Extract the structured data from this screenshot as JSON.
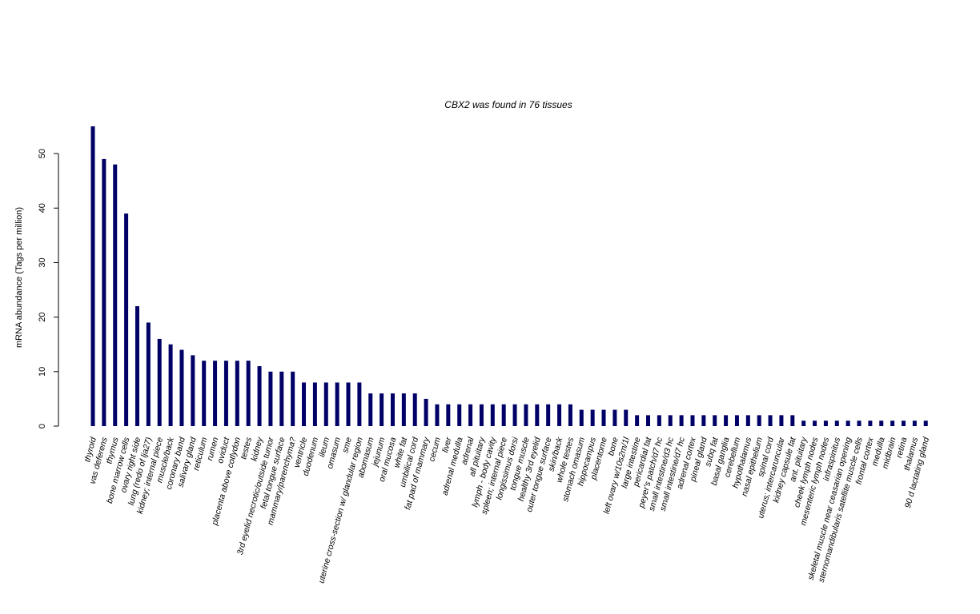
{
  "chart_data": {
    "type": "bar",
    "title": "CBX2  was found in  76  tissues",
    "xlabel": "",
    "ylabel": "mRNA abundance (Tags per million)",
    "ylim": [
      0,
      55
    ],
    "yticks": [
      0,
      10,
      20,
      30,
      40,
      50
    ],
    "bar_color": "#000066",
    "grid": false,
    "categories": [
      "thyroid",
      "vas deferens",
      "thymus",
      "bone marrow cells",
      "ovary right side",
      "lung (redo of lja27)",
      "kidney; internal piece",
      "muscle/back",
      "coronary band",
      "salivary gland",
      "reticulum",
      "rumen",
      "oviduct",
      "placenta above cotlydon",
      "testes",
      "kidney",
      "3rd eyelid necrotic/outside tumor",
      "fetal tongue surface",
      "mammary/parenchyma?",
      "ventricle",
      "duodenum",
      "ileum",
      "omasum",
      "sme",
      "uterine cross-section w/ glandular region",
      "abomasum",
      "jejunum",
      "oral mucosa",
      "white fat",
      "umbilical cord",
      "fat pad of mammary",
      "cecum",
      "liver",
      "adrenal medulla",
      "adrenal",
      "all pituitary",
      "lymph - body cavity",
      "spleen; internal piece",
      "longissimus dorsi",
      "tongue muscle",
      "healthy 3rd eyelid",
      "outer tongue surface",
      "skin/back",
      "whole testes",
      "stomach omasum",
      "hippocampus",
      "placentome",
      "bone",
      "left ovary w/10s2m/1l",
      "large intestine",
      "pericardial fat",
      "peyer's patch/d7 hc",
      "small intestine/d3 hc",
      "small intestine/d7 hc",
      "adrenal cortex",
      "pineal gland",
      "subq fat",
      "basal ganglia",
      "cerebellum",
      "hypothalamus",
      "nasal epithelium",
      "spinal cord",
      "uterus; intercaruncular",
      "kidney capsule fat",
      "ant. pituitary",
      "cheek lymph nodes",
      "mesenteric lymph nodes",
      "infraspinitus",
      "skeletal muscle near ceasarian opening",
      "sternomandibularis satellite muscle cells",
      "frontal cortex",
      "medulla",
      "midbrain",
      "retina",
      "thalamus",
      "90 d lactating gland"
    ],
    "values": [
      55,
      49,
      48,
      39,
      22,
      19,
      16,
      15,
      14,
      13,
      12,
      12,
      12,
      12,
      12,
      11,
      10,
      10,
      10,
      8,
      8,
      8,
      8,
      8,
      8,
      6,
      6,
      6,
      6,
      6,
      5,
      4,
      4,
      4,
      4,
      4,
      4,
      4,
      4,
      4,
      4,
      4,
      4,
      4,
      3,
      3,
      3,
      3,
      3,
      2,
      2,
      2,
      2,
      2,
      2,
      2,
      2,
      2,
      2,
      2,
      2,
      2,
      2,
      2,
      1,
      1,
      1,
      1,
      1,
      1,
      1,
      1,
      1,
      1,
      1,
      1
    ]
  }
}
